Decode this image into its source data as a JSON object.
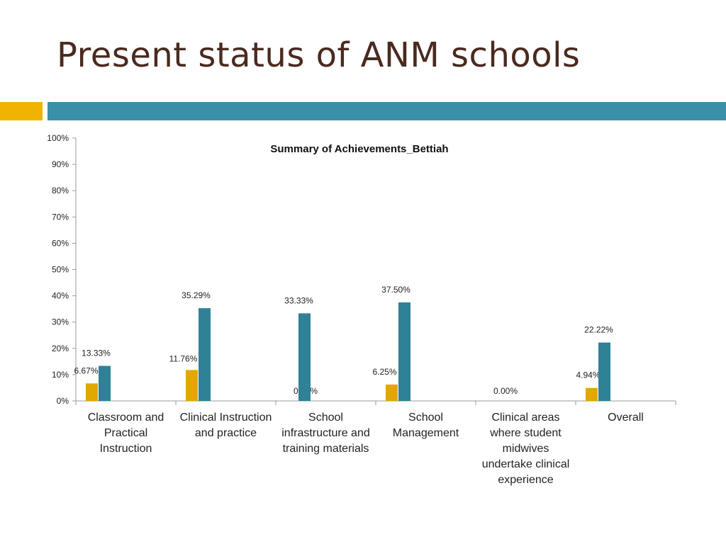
{
  "slide": {
    "title": "Present status of ANM schools",
    "accent_color": "#F0B400",
    "band_color": "#3A8FA9"
  },
  "chart_data": {
    "type": "bar",
    "title": "Summary of Achievements_Bettiah",
    "categories": [
      [
        "Classroom and",
        "Practical",
        "Instruction"
      ],
      [
        "Clinical Instruction",
        "and practice"
      ],
      [
        "School",
        "infrastructure and",
        "training materials"
      ],
      [
        "School",
        "Management"
      ],
      [
        "Clinical areas",
        "where student",
        "midwives",
        "undertake clinical",
        "experience"
      ],
      [
        "Overall"
      ]
    ],
    "series": [
      {
        "color": "#E0A800",
        "values": [
          6.67,
          11.76,
          0,
          6.25,
          0,
          4.94
        ],
        "labels": [
          "6.67%",
          "11.76%",
          "0.00%",
          "6.25%",
          "0.00%",
          "4.94%"
        ]
      },
      {
        "color": "#2F8196",
        "values": [
          13.33,
          35.29,
          33.33,
          37.5,
          null,
          22.22
        ],
        "labels": [
          "13.33%",
          "35.29%",
          "33.33%",
          "37.50%",
          null,
          "22.22%"
        ]
      }
    ],
    "ylim": [
      0,
      100
    ],
    "yticks": [
      0,
      10,
      20,
      30,
      40,
      50,
      60,
      70,
      80,
      90,
      100
    ],
    "ytick_labels": [
      "0%",
      "10%",
      "20%",
      "30%",
      "40%",
      "50%",
      "60%",
      "70%",
      "80%",
      "90%",
      "100%"
    ],
    "grid": false,
    "legend": "none"
  }
}
